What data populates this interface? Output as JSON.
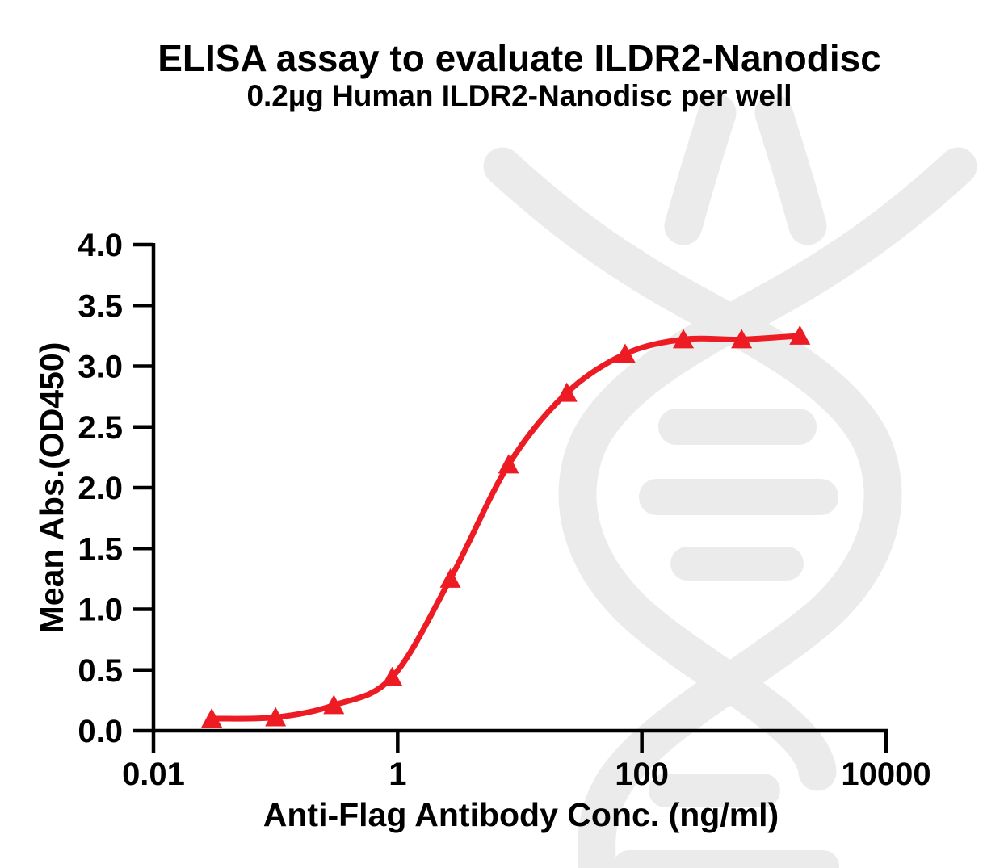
{
  "figure": {
    "kind": "elisa-binding-curve",
    "background": "#FFFFFF"
  },
  "chart_data": {
    "type": "scatter",
    "curve": "sigmoidal dose-response fit line through points",
    "title": "ELISA assay to evaluate ILDR2-Nanodisc",
    "subtitle": "0.2µg Human ILDR2-Nanodisc per well",
    "xlabel": "Anti-Flag Antibody Conc. (ng/ml)",
    "ylabel": "Mean Abs.(OD450)",
    "x_scale": "log10",
    "xlim": [
      0.01,
      10000
    ],
    "ylim": [
      0,
      4
    ],
    "x_ticks": [
      0.01,
      1,
      100,
      10000
    ],
    "x_tick_labels": [
      "0.01",
      "1",
      "100",
      "10000"
    ],
    "y_ticks": [
      0,
      0.5,
      1,
      1.5,
      2,
      2.5,
      3,
      3.5,
      4
    ],
    "y_tick_labels": [
      "0.0",
      "0.5",
      "1.0",
      "1.5",
      "2.0",
      "2.5",
      "3.0",
      "3.5",
      "4.0"
    ],
    "grid": false,
    "legend": "none",
    "series": [
      {
        "name": "Human ILDR2-Nanodisc",
        "marker": "triangle-up",
        "color": "#ED1C24",
        "x": [
          0.03,
          0.1,
          0.3,
          0.9,
          2.7,
          8.1,
          24.3,
          72.9,
          218.7,
          656.1,
          1968.3
        ],
        "y": [
          0.1,
          0.11,
          0.21,
          0.44,
          1.25,
          2.19,
          2.78,
          3.1,
          3.22,
          3.22,
          3.25
        ]
      }
    ],
    "values_note": "Point values estimated from log-scale axes; ~3-fold serial antibody dilution"
  },
  "colors": {
    "curve_red": "#ED1C24",
    "axis_black": "#000000",
    "watermark_gray": "#EBEBEB",
    "background": "#FFFFFF"
  },
  "icons": {
    "watermark": "dna-antibody-watermark-icon"
  }
}
